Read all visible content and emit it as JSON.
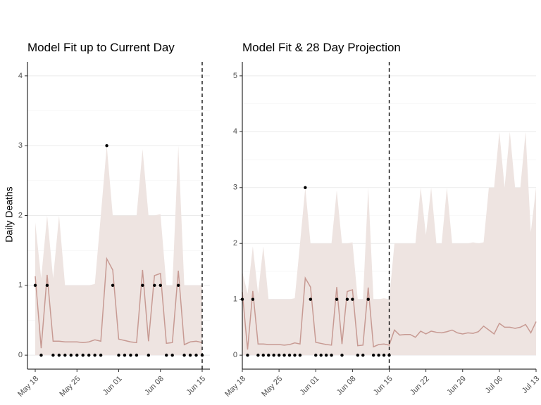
{
  "chart_data": [
    {
      "type": "line",
      "title": "Model Fit up to Current Day",
      "y_label": "Daily Deaths",
      "categories": [
        "May 18",
        null,
        null,
        null,
        null,
        null,
        null,
        "May 25",
        null,
        null,
        null,
        null,
        null,
        null,
        "Jun 01",
        null,
        null,
        null,
        null,
        null,
        null,
        "Jun 08",
        null,
        null,
        null,
        null,
        null,
        null,
        "Jun 15"
      ],
      "vline": "Jun 15",
      "ylim": [
        -0.2,
        4.2
      ],
      "yticks": [
        0,
        1,
        2,
        3,
        4
      ],
      "grid": true,
      "series": [
        {
          "style": "area",
          "color": "#eee4e1",
          "values": [
            1.9,
            1.1,
            2.0,
            1.1,
            2.0,
            1.0,
            1.0,
            1.0,
            1.0,
            1.0,
            1.02,
            2.0,
            3.0,
            2.0,
            2.0,
            2.0,
            2.0,
            2.0,
            2.95,
            2.0,
            2.0,
            2.02,
            1.0,
            1.0,
            3.0,
            1.0,
            1.0,
            1.0,
            1.0
          ]
        },
        {
          "style": "line",
          "color": "#c79a93",
          "values": [
            1.13,
            0.1,
            1.15,
            0.2,
            0.2,
            0.19,
            0.19,
            0.19,
            0.18,
            0.19,
            0.22,
            0.2,
            1.38,
            1.22,
            0.23,
            0.21,
            0.19,
            0.18,
            1.22,
            0.2,
            1.14,
            1.17,
            0.17,
            0.18,
            1.21,
            0.15,
            0.19,
            0.2,
            0.18
          ]
        },
        {
          "style": "points",
          "color": "#000000",
          "values": [
            1,
            0,
            1,
            0,
            0,
            0,
            0,
            0,
            0,
            0,
            0,
            0,
            3,
            1,
            0,
            0,
            0,
            0,
            1,
            0,
            1,
            1,
            0,
            0,
            1,
            0,
            0,
            0,
            0
          ]
        }
      ]
    },
    {
      "type": "line",
      "title": "Model Fit & 28 Day Projection",
      "categories": [
        "May 18",
        null,
        null,
        null,
        null,
        null,
        null,
        "May 25",
        null,
        null,
        null,
        null,
        null,
        null,
        "Jun 01",
        null,
        null,
        null,
        null,
        null,
        null,
        "Jun 08",
        null,
        null,
        null,
        null,
        null,
        null,
        "Jun 15",
        null,
        null,
        null,
        null,
        null,
        null,
        "Jun 22",
        null,
        null,
        null,
        null,
        null,
        null,
        "Jun 29",
        null,
        null,
        null,
        null,
        null,
        null,
        "Jul 06",
        null,
        null,
        null,
        null,
        null,
        null,
        "Jul 13"
      ],
      "vline": "Jun 15",
      "ylim": [
        -0.25,
        5.25
      ],
      "yticks": [
        0,
        1,
        2,
        3,
        4,
        5
      ],
      "grid": true,
      "series": [
        {
          "style": "area",
          "color": "#eee4e1",
          "values": [
            1.5,
            1.1,
            1.95,
            1.1,
            1.95,
            1.0,
            1.0,
            1.0,
            1.0,
            1.0,
            1.02,
            2.0,
            3.0,
            2.0,
            2.0,
            2.0,
            2.0,
            2.0,
            2.95,
            2.0,
            2.0,
            2.02,
            1.0,
            1.0,
            3.0,
            1.0,
            1.0,
            1.02,
            1.0,
            2.0,
            2.0,
            2.0,
            2.0,
            2.0,
            3.0,
            2.15,
            3.0,
            2.0,
            2.0,
            3.0,
            2.0,
            2.0,
            2.0,
            2.0,
            2.02,
            2.0,
            2.02,
            3.0,
            3.0,
            4.0,
            3.0,
            4.0,
            3.0,
            3.0,
            4.0,
            2.2,
            3.0
          ]
        },
        {
          "style": "line",
          "color": "#c79a93",
          "values": [
            1.13,
            0.1,
            1.15,
            0.2,
            0.2,
            0.19,
            0.19,
            0.19,
            0.18,
            0.19,
            0.22,
            0.2,
            1.38,
            1.22,
            0.23,
            0.21,
            0.19,
            0.18,
            1.22,
            0.2,
            1.14,
            1.17,
            0.17,
            0.18,
            1.21,
            0.15,
            0.19,
            0.2,
            0.18,
            0.45,
            0.36,
            0.37,
            0.37,
            0.32,
            0.43,
            0.38,
            0.43,
            0.41,
            0.4,
            0.42,
            0.45,
            0.4,
            0.38,
            0.4,
            0.39,
            0.42,
            0.52,
            0.45,
            0.38,
            0.57,
            0.5,
            0.5,
            0.48,
            0.5,
            0.55,
            0.4,
            0.6
          ]
        },
        {
          "style": "points",
          "color": "#000000",
          "values": [
            1,
            0,
            1,
            0,
            0,
            0,
            0,
            0,
            0,
            0,
            0,
            0,
            3,
            1,
            0,
            0,
            0,
            0,
            1,
            0,
            1,
            1,
            0,
            0,
            1,
            0,
            0,
            0,
            0,
            null,
            null,
            null,
            null,
            null,
            null,
            null,
            null,
            null,
            null,
            null,
            null,
            null,
            null,
            null,
            null,
            null,
            null,
            null,
            null,
            null,
            null,
            null,
            null,
            null,
            null,
            null,
            null
          ]
        }
      ]
    }
  ]
}
